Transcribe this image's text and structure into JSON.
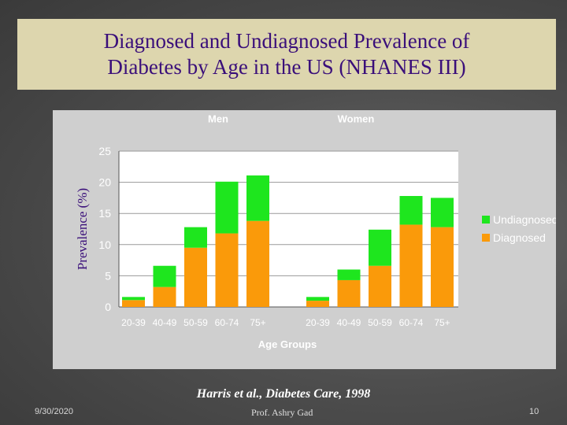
{
  "slide": {
    "title": "Diagnosed and Undiagnosed Prevalence of\nDiabetes by Age in the US (NHANES III)",
    "source": "Harris et al., Diabetes Care, 1998",
    "footer_date": "9/30/2020",
    "footer_author": "Prof. Ashry Gad",
    "footer_page": "10"
  },
  "colors": {
    "undiagnosed": "#1ee61e",
    "diagnosed": "#fa9a0a",
    "plot_bg": "#ffffff",
    "chart_bg": "#cfcfcf",
    "grid": "#9a9a9a",
    "title": "#3a0f7a"
  },
  "chart_data": {
    "type": "bar",
    "stacked": true,
    "groups": [
      "Men",
      "Women"
    ],
    "categories": [
      "20-39",
      "40-49",
      "50-59",
      "60-74",
      "75+"
    ],
    "ylabel": "Prevalence (%)",
    "xlabel": "Age Groups",
    "ylim": [
      0,
      25
    ],
    "yticks": [
      0,
      5,
      10,
      15,
      20,
      25
    ],
    "grid": true,
    "legend_position": "right",
    "series": [
      {
        "name": "Diagnosed",
        "values": {
          "Men": [
            1.1,
            3.2,
            9.5,
            11.8,
            13.8
          ],
          "Women": [
            1.0,
            4.3,
            6.6,
            13.2,
            12.8
          ]
        }
      },
      {
        "name": "Undiagnosed",
        "values": {
          "Men": [
            0.5,
            3.4,
            3.3,
            8.3,
            7.3
          ],
          "Women": [
            0.6,
            1.7,
            5.8,
            4.6,
            4.7
          ]
        }
      }
    ],
    "legend": [
      "Undiagnosed",
      "Diagnosed"
    ]
  }
}
